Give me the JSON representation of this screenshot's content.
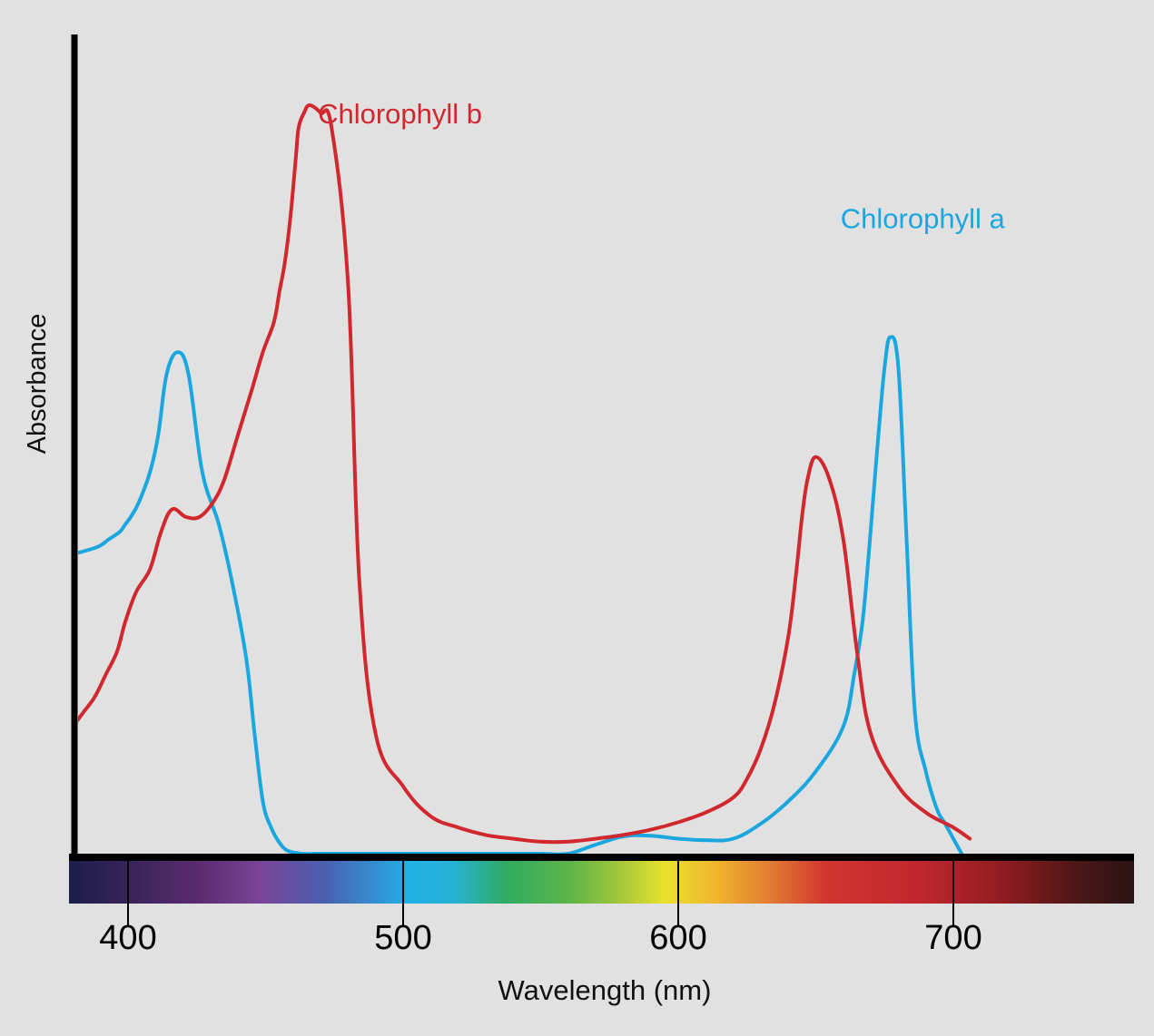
{
  "chart_data": {
    "type": "line",
    "title": "",
    "xlabel": "Wavelength (nm)",
    "ylabel": "Absorbance",
    "x_ticks": [
      400,
      500,
      600,
      700
    ],
    "xlim": [
      379,
      728
    ],
    "ylim": [
      0,
      1.0
    ],
    "grid": false,
    "legend": "inline labels",
    "spectrum_bar": true,
    "series": [
      {
        "name": "Chlorophyll a",
        "color": "#1aa7e0",
        "label_anchor": [
          659,
          0.86
        ],
        "x": [
          380,
          389,
          393,
          397,
          399,
          401,
          404,
          408,
          411,
          414,
          418,
          422,
          427,
          433,
          438,
          443,
          446,
          449,
          452,
          455,
          458,
          463,
          468,
          470,
          476,
          480,
          486,
          489,
          492,
          500,
          510,
          520,
          530,
          540,
          550,
          560,
          570,
          580,
          590,
          600,
          610,
          620,
          630,
          640,
          650,
          660,
          664,
          667,
          669,
          671,
          673,
          675,
          677,
          680,
          683,
          686,
          690,
          694,
          697,
          703
        ],
        "y": [
          0.4,
          0.41,
          0.42,
          0.43,
          0.44,
          0.45,
          0.47,
          0.51,
          0.56,
          0.64,
          0.67,
          0.64,
          0.51,
          0.44,
          0.36,
          0.26,
          0.16,
          0.07,
          0.035,
          0.015,
          0.004,
          0.0,
          0.0,
          0.0,
          0.0,
          0.0,
          0.0,
          0.0,
          0.0,
          0.0,
          0.0,
          0.0,
          0.0,
          0.0,
          0.0,
          0.0,
          0.012,
          0.023,
          0.024,
          0.02,
          0.018,
          0.02,
          0.04,
          0.07,
          0.11,
          0.17,
          0.24,
          0.31,
          0.39,
          0.48,
          0.57,
          0.65,
          0.69,
          0.65,
          0.42,
          0.19,
          0.11,
          0.06,
          0.04,
          0.0
        ]
      },
      {
        "name": "Chlorophyll b",
        "color": "#d0282e",
        "label_anchor": [
          469,
          1.0
        ],
        "x": [
          380,
          384,
          388,
          392,
          396,
          399,
          403,
          408,
          412,
          416,
          421,
          426,
          431,
          435,
          440,
          445,
          449,
          453,
          455,
          457,
          459,
          461,
          462,
          464,
          466,
          470,
          474,
          480,
          484,
          490,
          500,
          510,
          520,
          530,
          540,
          550,
          560,
          570,
          580,
          590,
          600,
          610,
          620,
          625,
          630,
          635,
          640,
          643,
          645,
          647,
          650,
          655,
          660,
          665,
          670,
          680,
          690,
          700,
          706
        ],
        "y": [
          0.17,
          0.19,
          0.21,
          0.24,
          0.27,
          0.31,
          0.35,
          0.38,
          0.43,
          0.46,
          0.45,
          0.45,
          0.47,
          0.5,
          0.56,
          0.62,
          0.67,
          0.71,
          0.75,
          0.79,
          0.85,
          0.93,
          0.97,
          0.99,
          1.0,
          0.99,
          0.97,
          0.76,
          0.37,
          0.16,
          0.09,
          0.05,
          0.035,
          0.025,
          0.02,
          0.016,
          0.016,
          0.02,
          0.025,
          0.032,
          0.042,
          0.055,
          0.075,
          0.1,
          0.14,
          0.2,
          0.29,
          0.38,
          0.45,
          0.5,
          0.53,
          0.5,
          0.42,
          0.27,
          0.16,
          0.09,
          0.055,
          0.035,
          0.02
        ]
      }
    ]
  }
}
